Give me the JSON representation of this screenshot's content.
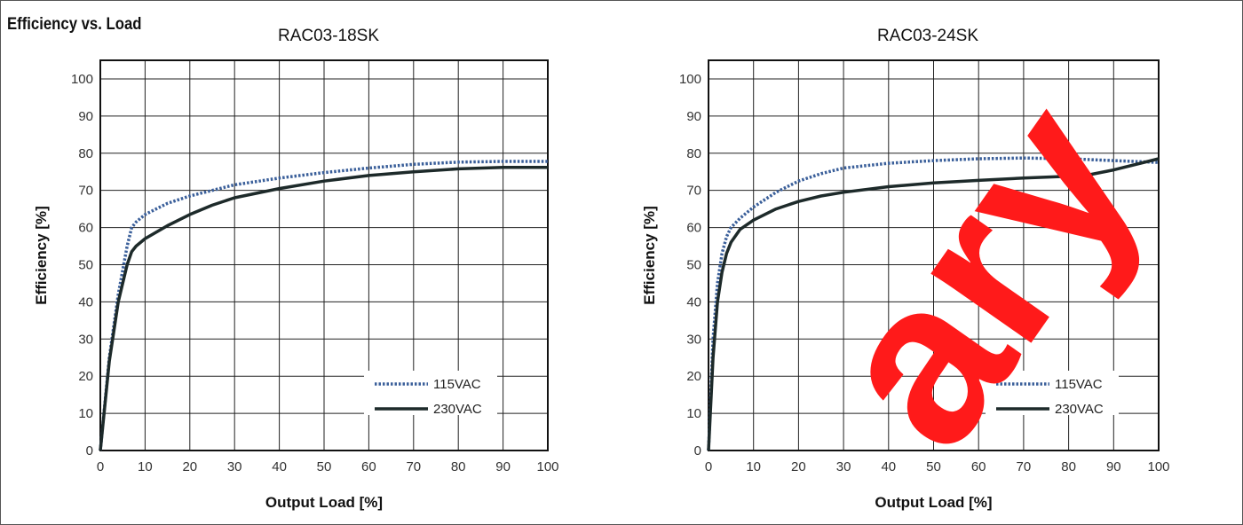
{
  "page": {
    "section_title": "Efficiency vs. Load",
    "watermark": "Preliminary"
  },
  "colors": {
    "series_115": "#3a5f9a",
    "series_230": "#1d2a2a",
    "grid": "#222222",
    "watermark": "#ff1a1a"
  },
  "chart_data": [
    {
      "type": "line",
      "title": "RAC03-18SK",
      "xlabel": "Output Load [%]",
      "ylabel": "Efficiency [%]",
      "xlim": [
        0,
        100
      ],
      "ylim": [
        0,
        105
      ],
      "xticks": [
        0,
        10,
        20,
        30,
        40,
        50,
        60,
        70,
        80,
        90,
        100
      ],
      "yticks": [
        0,
        10,
        20,
        30,
        40,
        50,
        60,
        70,
        80,
        90,
        100
      ],
      "grid": true,
      "legend_position": "bottom-right",
      "series": [
        {
          "name": "115VAC",
          "style": "dotted",
          "x": [
            0,
            2,
            4,
            6,
            7,
            8,
            10,
            15,
            20,
            25,
            30,
            40,
            50,
            60,
            70,
            80,
            90,
            100
          ],
          "y": [
            0,
            25,
            42,
            55,
            60,
            61.5,
            63.5,
            66.5,
            68.5,
            70,
            71.5,
            73.3,
            74.8,
            76,
            77,
            77.6,
            77.8,
            77.8
          ]
        },
        {
          "name": "230VAC",
          "style": "solid",
          "x": [
            0,
            2,
            4,
            6,
            7,
            8,
            10,
            15,
            20,
            25,
            30,
            40,
            50,
            60,
            70,
            80,
            90,
            100
          ],
          "y": [
            0,
            24,
            40,
            50,
            53.5,
            55,
            57,
            60.5,
            63.5,
            66,
            68,
            70.5,
            72.5,
            74,
            75,
            75.8,
            76.2,
            76.2
          ]
        }
      ]
    },
    {
      "type": "line",
      "title": "RAC03-24SK",
      "xlabel": "Output Load [%]",
      "ylabel": "Efficiency [%]",
      "xlim": [
        0,
        100
      ],
      "ylim": [
        0,
        105
      ],
      "xticks": [
        0,
        10,
        20,
        30,
        40,
        50,
        60,
        70,
        80,
        90,
        100
      ],
      "yticks": [
        0,
        10,
        20,
        30,
        40,
        50,
        60,
        70,
        80,
        90,
        100
      ],
      "grid": true,
      "legend_position": "bottom-right",
      "series": [
        {
          "name": "115VAC",
          "style": "dotted",
          "x": [
            0,
            1,
            2,
            3,
            4,
            5,
            7,
            10,
            15,
            20,
            25,
            30,
            40,
            50,
            60,
            70,
            80,
            90,
            100
          ],
          "y": [
            0,
            30,
            45,
            53,
            57.5,
            60,
            62.5,
            65.5,
            69.5,
            72.5,
            74.5,
            76,
            77.3,
            78,
            78.5,
            78.7,
            78.5,
            78,
            77.5
          ]
        },
        {
          "name": "230VAC",
          "style": "solid",
          "x": [
            0,
            1,
            2,
            3,
            4,
            5,
            7,
            10,
            15,
            20,
            25,
            30,
            40,
            50,
            60,
            70,
            80,
            85,
            90,
            100
          ],
          "y": [
            0,
            25,
            40,
            48,
            53,
            56,
            59.5,
            62,
            65,
            67,
            68.5,
            69.5,
            71,
            72,
            72.7,
            73.3,
            73.8,
            74.3,
            75.5,
            78.5
          ]
        }
      ]
    }
  ]
}
